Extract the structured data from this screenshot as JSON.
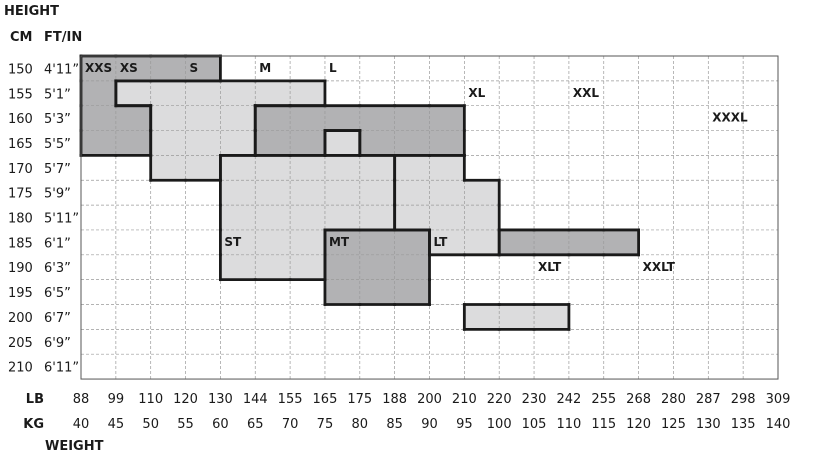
{
  "chart_data": {
    "type": "heatmap",
    "title": "",
    "y_axis_label": "HEIGHT",
    "x_axis_label": "WEIGHT",
    "height_cm_header": "CM",
    "height_ftin_header": "FT/IN",
    "weight_lb_header": "LB",
    "weight_kg_header": "KG",
    "heights_cm": [
      "150",
      "155",
      "160",
      "165",
      "170",
      "175",
      "180",
      "185",
      "190",
      "195",
      "200",
      "205",
      "210"
    ],
    "heights_ftin": [
      "4'11”",
      "5'1”",
      "5'3”",
      "5'5”",
      "5'7”",
      "5'9”",
      "5'11”",
      "6'1”",
      "6'3”",
      "6'5”",
      "6'7”",
      "6'9”",
      "6'11”"
    ],
    "weights_lb": [
      "88",
      "99",
      "110",
      "120",
      "130",
      "144",
      "155",
      "165",
      "175",
      "188",
      "200",
      "210",
      "220",
      "230",
      "242",
      "255",
      "268",
      "280",
      "287",
      "298",
      "309"
    ],
    "weights_kg": [
      "40",
      "45",
      "50",
      "55",
      "60",
      "65",
      "70",
      "75",
      "80",
      "85",
      "90",
      "95",
      "100",
      "105",
      "110",
      "115",
      "120",
      "125",
      "130",
      "135",
      "140"
    ],
    "colors": {
      "dark": "#b2b2b4",
      "light": "#dcdcdd",
      "border": "#1a1a1a",
      "grid": "#9a9a9a"
    },
    "sizes": [
      {
        "name": "XXS",
        "tone": "dark",
        "label_cell": [
          0,
          0
        ],
        "columns": [
          [
            0,
            3
          ],
          [
            0,
            3
          ],
          [
            0,
            3
          ],
          [
            0,
            3
          ]
        ]
      },
      {
        "name": "XS",
        "tone": "light",
        "label_cell": [
          1,
          0
        ],
        "columns": [
          [
            1,
            1
          ],
          [
            1,
            4
          ],
          [
            1,
            4
          ],
          [
            1,
            4
          ],
          [
            1,
            5
          ],
          [
            1,
            5
          ]
        ]
      },
      {
        "name": "S",
        "tone": "dark",
        "label_cell": [
          3,
          0
        ],
        "columns": [
          [
            3,
            1
          ],
          [
            3,
            1
          ],
          [
            2,
            6
          ],
          [
            2,
            6
          ],
          [
            2,
            6
          ],
          [
            2,
            7
          ],
          [
            2,
            7
          ],
          [
            2,
            7
          ]
        ]
      },
      {
        "name": "M",
        "tone": "light",
        "label_cell": [
          5,
          0
        ],
        "columns": [
          [
            5,
            1
          ],
          [
            5,
            1
          ],
          [
            3,
            6
          ],
          [
            4,
            7
          ],
          [
            4,
            7
          ],
          [
            4,
            7
          ],
          [
            5,
            7
          ]
        ]
      },
      {
        "name": "L",
        "tone": "dark",
        "label_cell": [
          7,
          0
        ],
        "columns": [
          [
            7,
            0
          ],
          [
            7,
            1
          ],
          [
            7,
            1
          ],
          [
            7,
            2
          ],
          [
            7,
            3
          ],
          [
            7,
            7
          ],
          [
            7,
            7
          ],
          [
            7,
            7
          ],
          [
            7,
            7
          ]
        ]
      },
      {
        "name": "XL",
        "tone": "light",
        "label_cell": [
          11,
          1
        ],
        "columns": [
          [
            11,
            2
          ],
          [
            11,
            3
          ],
          [
            11,
            7
          ],
          [
            11,
            7
          ],
          [
            11,
            7
          ]
        ]
      },
      {
        "name": "XXL",
        "tone": "dark",
        "label_cell": [
          14,
          1
        ],
        "columns": [
          [
            14,
            6
          ],
          [
            14,
            6
          ],
          [
            14,
            7
          ],
          [
            14,
            8
          ],
          [
            14,
            8
          ]
        ]
      },
      {
        "name": "XXXL",
        "tone": "light",
        "label_cell": [
          18,
          2
        ],
        "columns": [
          [
            18,
            8
          ],
          [
            18,
            8
          ],
          [
            18,
            8
          ]
        ]
      },
      {
        "name": "ST",
        "tone": "light",
        "label_cell": [
          4,
          7
        ],
        "columns": [
          [
            4,
            8
          ],
          [
            4,
            8
          ],
          [
            4,
            8
          ],
          [
            4,
            8
          ],
          [
            4,
            9
          ]
        ]
      },
      {
        "name": "MT",
        "tone": "dark",
        "label_cell": [
          7,
          7
        ],
        "columns": [
          [
            7,
            9
          ],
          [
            7,
            9
          ],
          [
            7,
            9
          ]
        ]
      },
      {
        "name": "LT",
        "tone": "light",
        "label_cell": [
          10,
          7
        ],
        "columns": [
          [
            10,
            9
          ],
          [
            10,
            10
          ],
          [
            10,
            10
          ],
          [
            10,
            10
          ]
        ]
      },
      {
        "name": "XLT",
        "tone": "dark",
        "label_cell": [
          13,
          8
        ],
        "columns": [
          [
            13,
            11
          ],
          [
            13,
            12
          ],
          [
            13,
            12
          ],
          [
            13,
            12
          ]
        ]
      },
      {
        "name": "XXLT",
        "tone": "light",
        "label_cell": [
          16,
          8
        ],
        "columns": [
          [
            16,
            12
          ],
          [
            16,
            12
          ],
          [
            16,
            12
          ]
        ]
      }
    ]
  }
}
